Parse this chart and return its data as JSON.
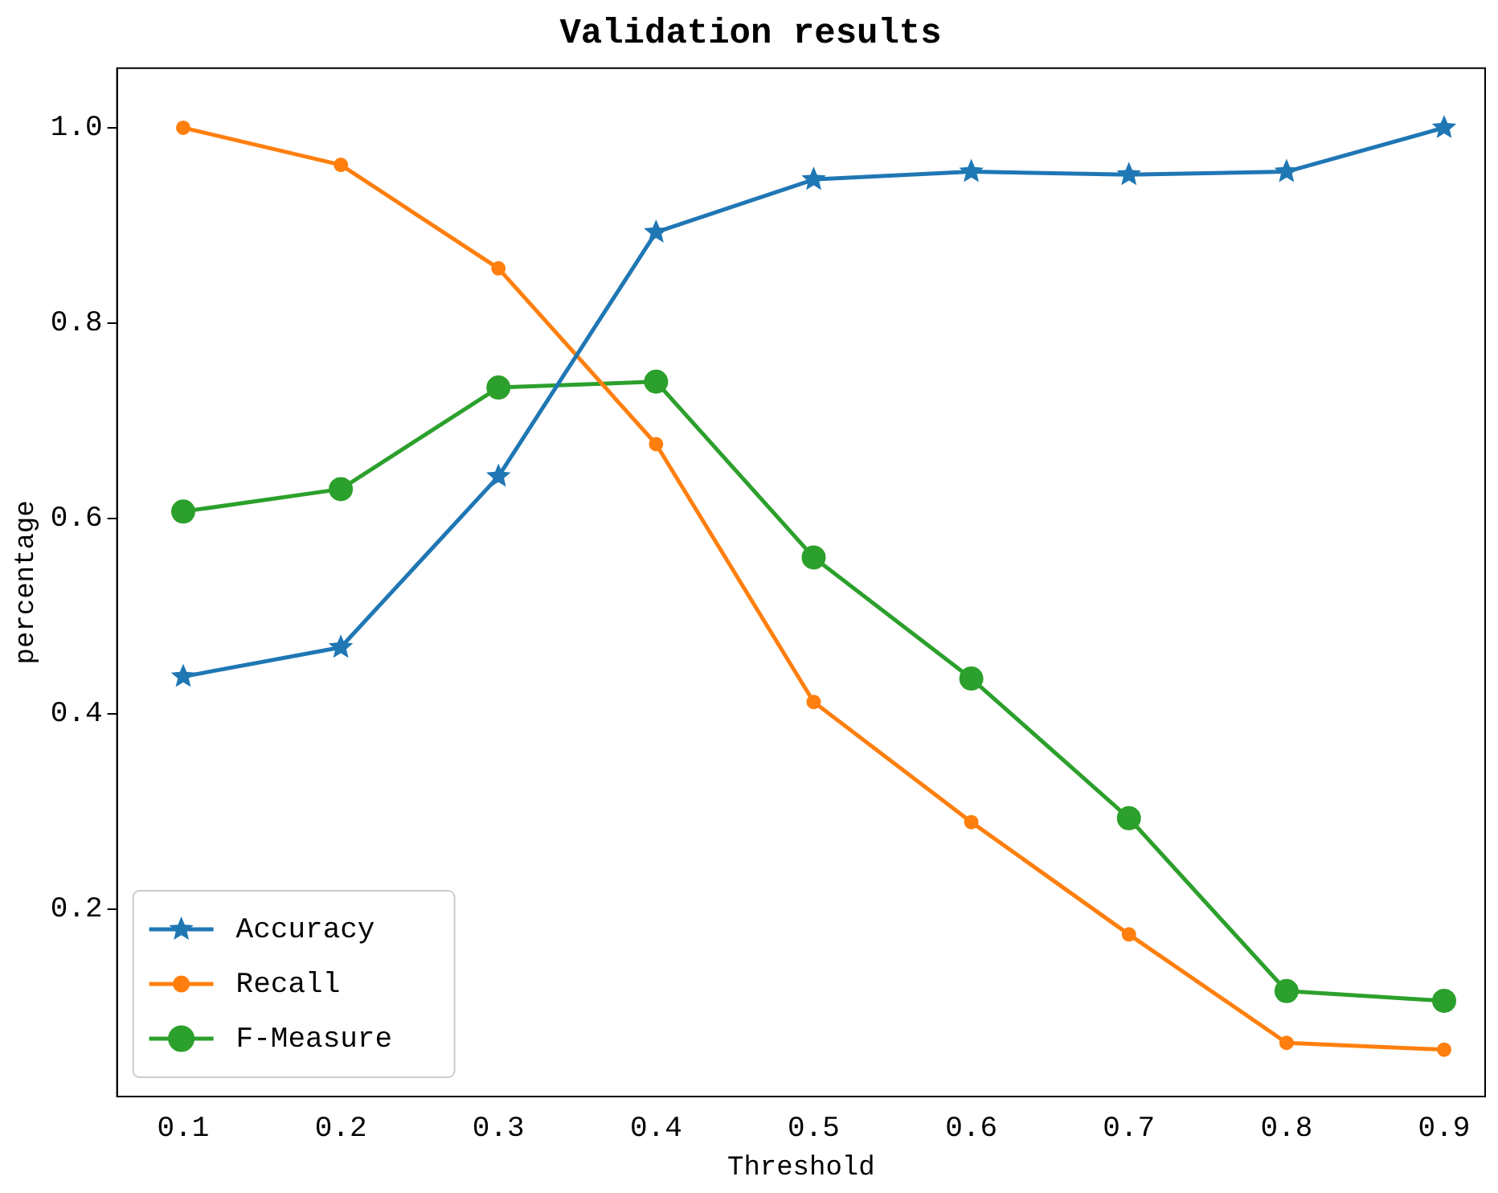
{
  "chart_data": {
    "type": "line",
    "title": "Validation results",
    "xlabel": "Threshold",
    "ylabel": "percentage",
    "x": [
      0.1,
      0.2,
      0.3,
      0.4,
      0.5,
      0.6,
      0.7,
      0.8,
      0.9
    ],
    "series": [
      {
        "name": "Accuracy",
        "color": "#1f77b4",
        "marker": "star",
        "values": [
          0.438,
          0.468,
          0.643,
          0.893,
          0.947,
          0.955,
          0.952,
          0.955,
          1.0
        ]
      },
      {
        "name": "Recall",
        "color": "#ff7f0e",
        "marker": "circle",
        "values": [
          1.0,
          0.962,
          0.856,
          0.676,
          0.412,
          0.289,
          0.174,
          0.063,
          0.056
        ]
      },
      {
        "name": "F-Measure",
        "color": "#2ca02c",
        "marker": "circle",
        "values": [
          0.607,
          0.63,
          0.734,
          0.74,
          0.56,
          0.436,
          0.293,
          0.116,
          0.106
        ]
      }
    ],
    "xlim": [
      0.058,
      0.926
    ],
    "ylim": [
      0.008,
      1.061
    ],
    "xticks": [
      0.1,
      0.2,
      0.3,
      0.4,
      0.5,
      0.6,
      0.7,
      0.8,
      0.9
    ],
    "yticks": [
      0.2,
      0.4,
      0.6,
      0.8,
      {
        "value": 1,
        "label": "1.0"
      }
    ],
    "grid": false,
    "legend": "bottom left",
    "line_style": "solid"
  }
}
